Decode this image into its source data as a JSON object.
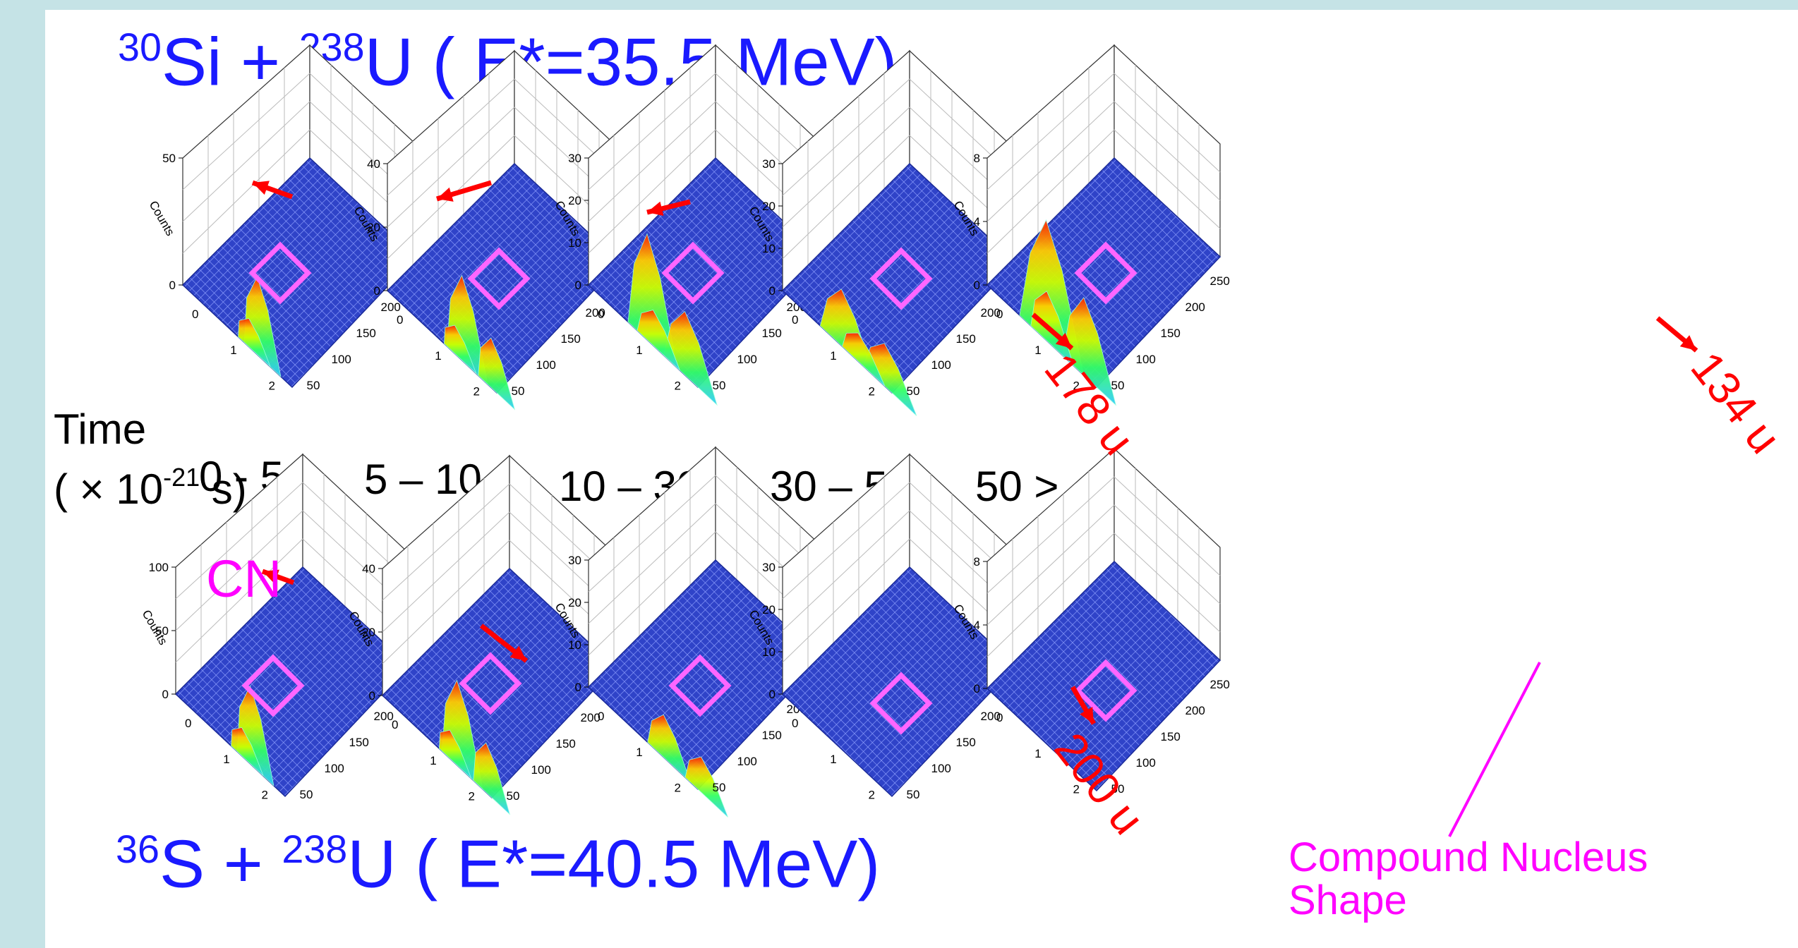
{
  "titles": {
    "top": {
      "sup1": "30",
      "el1": "Si + ",
      "sup2": "238",
      "el2": "U ( E*=35.5 MeV)"
    },
    "bottom": {
      "sup1": "36",
      "el1": "S + ",
      "sup2": "238",
      "el2": "U ( E*=40.5 MeV)"
    }
  },
  "time_label": {
    "line1": "Time",
    "line2_pre": "( × 10",
    "line2_sup": "-21",
    "line2_post": " s)"
  },
  "time_bins": [
    "0 - 5",
    "5 – 10",
    "10 – 30",
    "30 – 50",
    "50 >"
  ],
  "annotations": {
    "cn": "CN",
    "u178": "178 u",
    "u134": "134 u",
    "u200": "200 u",
    "compound_line1": "Compound Nucleus",
    "compound_line2": "Shape"
  },
  "axis": {
    "z_title": "Counts",
    "x_ticks": [
      "0",
      "1",
      "2"
    ],
    "y_ticks": [
      "50",
      "100",
      "150",
      "200",
      "250"
    ]
  },
  "panels": [
    {
      "row": "top",
      "bin": "0 - 5",
      "z_ticks": [
        "0",
        "50"
      ],
      "peak": "narrow-right"
    },
    {
      "row": "top",
      "bin": "5 – 10",
      "z_ticks": [
        "0",
        "20",
        "40"
      ],
      "peak": "right-wide"
    },
    {
      "row": "top",
      "bin": "10 – 30",
      "z_ticks": [
        "0",
        "10",
        "20",
        "30"
      ],
      "peak": "broad-178u"
    },
    {
      "row": "top",
      "bin": "30 – 50",
      "z_ticks": [
        "0",
        "10",
        "20",
        "30"
      ],
      "peak": "spread"
    },
    {
      "row": "top",
      "bin": "50 >",
      "z_ticks": [
        "0",
        "4",
        "8"
      ],
      "peak": "fusion-134u"
    },
    {
      "row": "bottom",
      "bin": "0 - 5",
      "z_ticks": [
        "0",
        "50",
        "100"
      ],
      "peak": "narrow-right"
    },
    {
      "row": "bottom",
      "bin": "5 – 10",
      "z_ticks": [
        "0",
        "20",
        "40"
      ],
      "peak": "right-wide"
    },
    {
      "row": "bottom",
      "bin": "10 – 30",
      "z_ticks": [
        "0",
        "10",
        "20",
        "30"
      ],
      "peak": "low-200u"
    },
    {
      "row": "bottom",
      "bin": "30 – 50",
      "z_ticks": [
        "0",
        "10",
        "20",
        "30"
      ],
      "peak": "none"
    },
    {
      "row": "bottom",
      "bin": "50 >",
      "z_ticks": [
        "0",
        "4",
        "8"
      ],
      "peak": "none"
    }
  ],
  "colors": {
    "title": "#1a1aff",
    "arrow": "#ff0000",
    "cn_box": "#ff66ff",
    "annotation": "#ff00ff",
    "surface": "#2f43c8",
    "background": "#c5e3e6"
  }
}
